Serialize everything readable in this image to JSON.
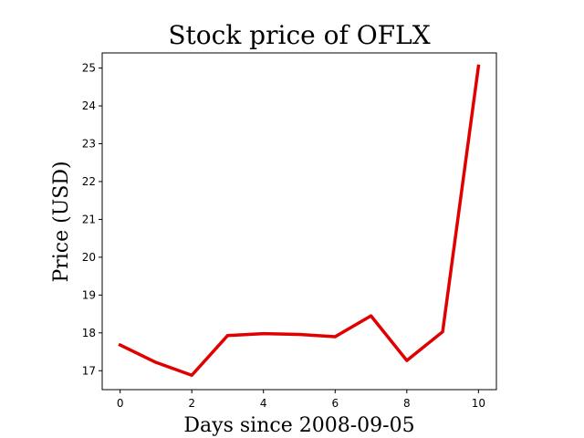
{
  "chart_data": {
    "type": "line",
    "title": "Stock price of OFLX",
    "xlabel": "Days since 2008-09-05",
    "ylabel": "Price (USD)",
    "x": [
      0,
      1,
      2,
      3,
      4,
      5,
      6,
      7,
      8,
      9,
      10
    ],
    "series": [
      {
        "values": [
          17.68,
          17.22,
          16.88,
          17.93,
          17.98,
          17.96,
          17.9,
          18.45,
          17.27,
          18.03,
          25.05
        ],
        "color": "#e00000"
      }
    ],
    "xlim": [
      -0.5,
      10.5
    ],
    "ylim": [
      16.5,
      25.4
    ],
    "xticks": [
      0,
      2,
      4,
      6,
      8,
      10
    ],
    "yticks": [
      17,
      18,
      19,
      20,
      21,
      22,
      23,
      24,
      25
    ],
    "grid": false,
    "legend": false
  }
}
